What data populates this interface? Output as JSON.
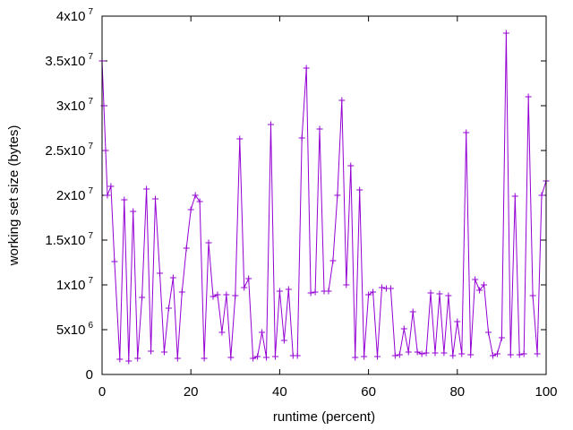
{
  "chart_data": {
    "type": "line",
    "title": "",
    "xlabel": "runtime (percent)",
    "ylabel": "working set size (bytes)",
    "xlim": [
      0,
      100
    ],
    "ylim": [
      0,
      40000000
    ],
    "x_ticks": [
      {
        "value": 0,
        "label": "0"
      },
      {
        "value": 20,
        "label": "20"
      },
      {
        "value": 40,
        "label": "40"
      },
      {
        "value": 60,
        "label": "60"
      },
      {
        "value": 80,
        "label": "80"
      },
      {
        "value": 100,
        "label": "100"
      }
    ],
    "y_ticks": [
      {
        "value": 0,
        "mant": "0",
        "exp": ""
      },
      {
        "value": 5000000,
        "mant": "5x10",
        "exp": "6"
      },
      {
        "value": 10000000,
        "mant": "1x10",
        "exp": "7"
      },
      {
        "value": 15000000,
        "mant": "1.5x10",
        "exp": "7"
      },
      {
        "value": 20000000,
        "mant": "2x10",
        "exp": "7"
      },
      {
        "value": 25000000,
        "mant": "2.5x10",
        "exp": "7"
      },
      {
        "value": 30000000,
        "mant": "3x10",
        "exp": "7"
      },
      {
        "value": 35000000,
        "mant": "3.5x10",
        "exp": "7"
      },
      {
        "value": 40000000,
        "mant": "4x10",
        "exp": "7"
      }
    ],
    "grid": false,
    "legend": "none",
    "series": [
      {
        "color": "#9400d3",
        "marker": "plus",
        "x": [
          0,
          0.4,
          0.8,
          1.2,
          2,
          2.8,
          4,
          5,
          6,
          7,
          8,
          9,
          10,
          11,
          12,
          13,
          14,
          15,
          16,
          17,
          18,
          19,
          20,
          21,
          22,
          23,
          24,
          25,
          26,
          27,
          28,
          29,
          30,
          31,
          32,
          33,
          34,
          35,
          36,
          37,
          38,
          39,
          40,
          41,
          42,
          43,
          44,
          45,
          46,
          47,
          48,
          49,
          50,
          51,
          52,
          53,
          54,
          55,
          56,
          57,
          58,
          59,
          60,
          61,
          62,
          63,
          64,
          65,
          66,
          67,
          68,
          69,
          70,
          71,
          72,
          73,
          74,
          75,
          76,
          77,
          78,
          79,
          80,
          81,
          82,
          83,
          84,
          85,
          86,
          87,
          88,
          89,
          90,
          91,
          92,
          93,
          94,
          95,
          96,
          97,
          98,
          99,
          100
        ],
        "y": [
          35000000,
          30000000,
          25000000,
          20000000,
          21000000,
          12600000,
          1700000,
          19500000,
          1500000,
          18200000,
          1800000,
          8600000,
          20700000,
          2600000,
          19600000,
          11300000,
          2500000,
          7400000,
          10800000,
          1800000,
          9200000,
          14100000,
          18400000,
          20000000,
          19300000,
          1800000,
          14700000,
          8700000,
          8900000,
          4700000,
          8900000,
          1900000,
          8800000,
          26300000,
          9700000,
          10700000,
          1800000,
          2000000,
          4700000,
          1900000,
          27900000,
          2000000,
          9300000,
          3800000,
          9500000,
          2100000,
          2100000,
          26400000,
          34200000,
          9100000,
          9200000,
          27400000,
          9300000,
          9300000,
          12700000,
          20000000,
          30600000,
          10000000,
          23300000,
          1900000,
          20600000,
          2000000,
          8900000,
          9200000,
          2000000,
          9700000,
          9600000,
          9600000,
          2100000,
          2200000,
          5100000,
          2500000,
          7000000,
          2500000,
          2300000,
          2400000,
          9100000,
          2400000,
          9000000,
          2400000,
          8800000,
          2100000,
          5900000,
          2300000,
          27000000,
          2200000,
          10600000,
          9400000,
          10000000,
          4700000,
          2100000,
          2300000,
          4100000,
          38100000,
          2200000,
          19900000,
          2200000,
          2300000,
          31000000,
          8800000,
          2300000,
          20000000,
          21600000
        ]
      }
    ]
  }
}
